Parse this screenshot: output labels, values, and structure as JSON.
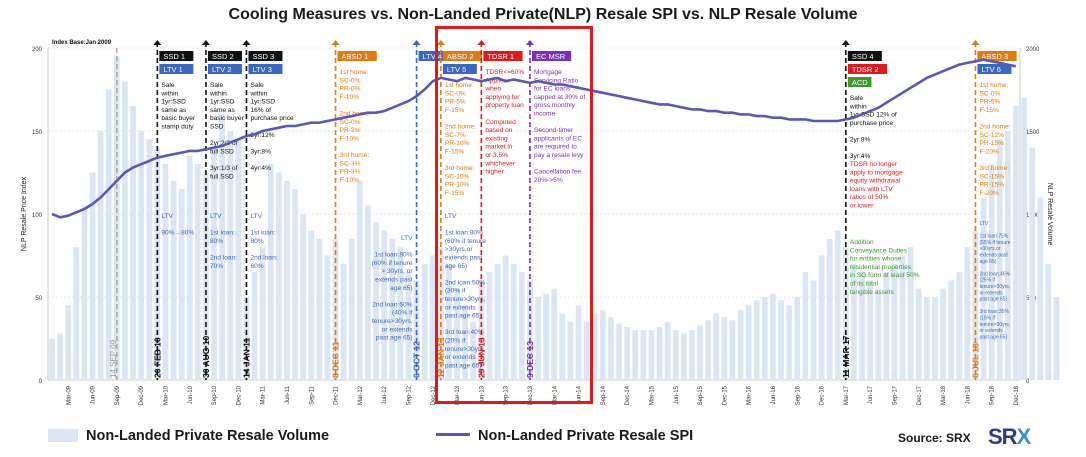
{
  "page": {
    "title": "Cooling Measures vs. Non-Landed Private(NLP) Resale SPI vs. NLP Resale Volume",
    "index_base": "Index Base:Jan 2009",
    "source": "Source: SRX",
    "logo_left": "SR",
    "logo_x": "X",
    "legend": {
      "volume": "Non-Landed Private Resale Volume",
      "spi": "Non-Landed Private Resale SPI"
    }
  },
  "colors": {
    "volume_bar": "#dbe6f4",
    "spi_line": "#5b57b8",
    "highlight": "#e0191d",
    "black": "#111111",
    "blue": "#3a66c4",
    "orange": "#e07b12",
    "red": "#e0191d",
    "purple": "#7b2fbf",
    "green": "#3a9a2c",
    "gray": "#9a9a9a"
  },
  "chart_data": {
    "type": "bar+line",
    "x_start": "Jan 2009",
    "x_end": "Dec 2018",
    "x_ticks": [
      "Mar-09",
      "Jun-09",
      "Sep-09",
      "Dec-09",
      "Mar-10",
      "Jun-10",
      "Sep-10",
      "Dec-10",
      "Mar-11",
      "Jun-11",
      "Sep-11",
      "Dec-11",
      "Mar-12",
      "Jun-12",
      "Sep-12",
      "Dec-12",
      "Mar-13",
      "Jun-13",
      "Sep-13",
      "Dec-13",
      "Mar-14",
      "Jun-14",
      "Sep-14",
      "Dec-14",
      "Mar-15",
      "Jun-15",
      "Sep-15",
      "Dec-15",
      "Mar-16",
      "Jun-16",
      "Sep-16",
      "Dec-16",
      "Mar-17",
      "Jun-17",
      "Sep-17",
      "Dec-17",
      "Mar-18",
      "Jun-18",
      "Sep-18",
      "Dec-18"
    ],
    "ylabel_left": "NLP Resale Price Index",
    "ylabel_right": "NLP Resale Volume",
    "ylim_left": [
      0,
      200
    ],
    "yticks_left": [
      0,
      50,
      100,
      150,
      200
    ],
    "ylim_right": [
      0,
      2000
    ],
    "yticks_right": [
      0,
      500,
      1000,
      1500,
      2000
    ],
    "series": [
      {
        "name": "Non-Landed Private Resale Volume",
        "kind": "bar",
        "axis": "right",
        "values": [
          250,
          280,
          450,
          800,
          1050,
          1250,
          1500,
          1750,
          1950,
          1800,
          1650,
          1500,
          1450,
          1400,
          1300,
          1200,
          1150,
          1350,
          1300,
          1250,
          1400,
          1600,
          1500,
          1450,
          500,
          650,
          800,
          1300,
          1250,
          1200,
          1150,
          1000,
          900,
          850,
          750,
          850,
          700,
          850,
          1200,
          1050,
          950,
          900,
          850,
          800,
          650,
          600,
          700,
          750,
          800,
          700,
          550,
          450,
          350,
          600,
          650,
          700,
          750,
          700,
          650,
          600,
          500,
          520,
          550,
          400,
          350,
          450,
          350,
          400,
          420,
          380,
          340,
          320,
          300,
          300,
          300,
          320,
          350,
          300,
          280,
          300,
          330,
          360,
          400,
          380,
          360,
          420,
          450,
          480,
          500,
          520,
          480,
          450,
          500,
          650,
          600,
          750,
          850,
          900,
          800,
          700,
          650,
          600,
          550,
          650,
          700,
          750,
          800,
          550,
          500,
          500,
          550,
          600,
          650,
          800,
          900,
          1100,
          1300,
          1450,
          1500,
          1650,
          1700,
          1400,
          1100,
          700,
          500
        ]
      },
      {
        "name": "Non-Landed Private Resale SPI",
        "kind": "line",
        "axis": "left",
        "values": [
          100,
          98,
          99,
          101,
          103,
          106,
          110,
          115,
          120,
          125,
          128,
          130,
          132,
          134,
          135,
          136,
          137,
          138,
          138,
          139,
          140,
          141,
          143,
          145,
          147,
          148,
          150,
          151,
          152,
          153,
          153,
          154,
          155,
          155,
          156,
          157,
          158,
          159,
          160,
          161,
          161,
          162,
          164,
          166,
          168,
          171,
          175,
          180,
          182,
          181,
          180,
          182,
          181,
          180,
          181,
          182,
          180,
          181,
          180,
          179,
          180,
          179,
          178,
          178,
          177,
          176,
          175,
          174,
          173,
          172,
          171,
          170,
          169,
          168,
          167,
          166,
          166,
          165,
          164,
          163,
          163,
          162,
          162,
          161,
          161,
          160,
          160,
          159,
          159,
          158,
          158,
          157,
          157,
          157,
          156,
          156,
          156,
          156,
          157,
          158,
          160,
          162,
          164,
          167,
          170,
          173,
          176,
          179,
          182,
          184,
          186,
          188,
          190,
          191,
          192,
          193,
          192,
          191,
          190,
          189
        ]
      }
    ]
  },
  "measures": [
    {
      "x": "Feb-10",
      "date_text": "20 FEB 10",
      "color": "black",
      "labels": [
        {
          "text": "SSD 1",
          "color": "black"
        },
        {
          "text": "LTV 1",
          "color": "blue"
        }
      ],
      "notes": [
        {
          "color": "black",
          "lines": [
            "Sale",
            "within",
            "1yr:SSD",
            "same as",
            "basic buyer",
            "stamp duty"
          ]
        },
        {
          "color": "blue",
          "lines": [
            "LTV",
            "",
            "90%→80%"
          ]
        }
      ]
    },
    {
      "x": "Aug-10",
      "date_text": "30 AUG 10",
      "color": "black",
      "labels": [
        {
          "text": "SSD 2",
          "color": "black"
        },
        {
          "text": "LTV 2",
          "color": "blue"
        }
      ],
      "notes": [
        {
          "color": "black",
          "lines": [
            "Sale",
            "within",
            "1yr:SSD",
            "same as",
            "basic buyer",
            "SSD",
            "",
            "2yr:2/3 of",
            "full SSD",
            "",
            "3yr:1/3 of",
            "full SSD"
          ]
        },
        {
          "color": "blue",
          "lines": [
            "LTV",
            "",
            "1st loan:",
            "80%",
            "",
            "2nd loan:",
            "70%"
          ]
        }
      ]
    },
    {
      "x": "Jan-11",
      "date_text": "14 JAN 11",
      "color": "black",
      "labels": [
        {
          "text": "SSD 3",
          "color": "black"
        },
        {
          "text": "LTV 3",
          "color": "blue"
        }
      ],
      "notes": [
        {
          "color": "black",
          "lines": [
            "Sale",
            "within",
            "1yr:SSD",
            "16% of",
            "purchase price",
            "",
            "2yr:12%",
            "",
            "3yr:8%",
            "",
            "4yr:4%"
          ]
        },
        {
          "color": "blue",
          "lines": [
            "LTV",
            "",
            "1st loan:",
            "80%",
            "",
            "2nd loan:",
            "60%"
          ]
        }
      ]
    },
    {
      "x": "Dec-11",
      "date_text": "8 DEC 11",
      "color": "orange",
      "labels": [
        {
          "text": "ABSD 1",
          "color": "orange"
        }
      ],
      "notes": [
        {
          "color": "orange",
          "lines": [
            "1st home:",
            "SC-0%",
            "PR-0%",
            "F-10%",
            "",
            "2nd home:",
            "SC-0%",
            "PR-3%",
            "F-10%",
            "",
            "3rd home:",
            "SC-3%",
            "PR-3%",
            "F-10%"
          ]
        }
      ]
    },
    {
      "x": "Oct-12",
      "date_text": "6 OCT 12",
      "color": "blue",
      "labels": [
        {
          "text": "LTV 4",
          "color": "blue"
        }
      ],
      "notes": [
        {
          "color": "blue",
          "lines": [
            "LTV",
            "",
            "1st loan:80%",
            "(60% if tenure",
            "> 30yrs, or",
            "extends past",
            "age 65)",
            "",
            "2nd loan:60%",
            "(40% if",
            "tenure>30yrs,",
            "or extends",
            "past age 65)"
          ]
        }
      ]
    },
    {
      "x": "Jan-13",
      "date_text": "12 JAN 13",
      "color": "orange",
      "labels": [
        {
          "text": "ABSD 2",
          "color": "orange"
        },
        {
          "text": "LTV 5",
          "color": "blue"
        }
      ],
      "notes": [
        {
          "color": "orange",
          "lines": [
            "1st home:",
            "SC-0%",
            "PR-5%",
            "F-15%",
            "",
            "2nd home:",
            "SC-7%",
            "PR-10%",
            "F-15%",
            "",
            "3rd home:",
            "SC-10%",
            "PR-10%",
            "F-15%"
          ]
        },
        {
          "color": "blue",
          "lines": [
            "LTV",
            "",
            "1st loan:80%",
            "(60% if tenure",
            ">30yrs,or",
            "extends past",
            "age 65)",
            "",
            "2nd loan:50%",
            "(30% if",
            "tenure>30yrs,",
            "or extends",
            "past age 65)",
            "",
            "3rd loan:40%",
            "(20% if",
            "tenure>30yrs,",
            "or extends",
            "past age 65)"
          ]
        }
      ]
    },
    {
      "x": "Jun-13",
      "date_text": "29 JUN 13",
      "color": "red",
      "labels": [
        {
          "text": "TDSR 1",
          "color": "red"
        }
      ],
      "notes": [
        {
          "color": "red",
          "lines": [
            "TDSR<=60%",
            "Applies",
            "when",
            "applying for",
            "property loan",
            "",
            "Computed",
            "based on",
            "existing",
            "market i/r",
            "or 3.5%",
            "whichever",
            "higher"
          ]
        }
      ]
    },
    {
      "x": "Dec-13",
      "date_text": "9 DEC 13",
      "color": "purple",
      "labels": [
        {
          "text": "EC MSR",
          "color": "purple"
        }
      ],
      "notes": [
        {
          "color": "purple",
          "lines": [
            "Mortgage",
            "Servicing Ratio",
            "for EC loans",
            "capped at 30% of",
            "gross monthly",
            "income",
            "",
            "Second-timer",
            "applicants of EC",
            "are required to",
            "pay a resale levy",
            "",
            "Cancellation fee",
            "20%->5%"
          ]
        }
      ]
    },
    {
      "x": "Mar-17",
      "date_text": "11 MAR 17",
      "color": "black",
      "labels": [
        {
          "text": "SSD 4",
          "color": "black"
        },
        {
          "text": "TDSR 2",
          "color": "red"
        },
        {
          "text": "ACD",
          "color": "green"
        }
      ],
      "notes": [
        {
          "color": "black",
          "lines": [
            "Sale",
            "within",
            "1yr:SSD 12% of",
            "purchase price",
            "",
            "2yr:8%",
            "",
            "3yr:4%"
          ]
        },
        {
          "color": "red",
          "lines": [
            "TDSR no longer",
            "apply to mortgage",
            "equity withdrawal",
            "loans with LTV",
            "ratios of 50%",
            "or lower"
          ]
        },
        {
          "color": "green",
          "lines": [
            "Addition",
            "Conveyance Duties",
            "for entities whose",
            "residential properties",
            "in SG form at least 50%",
            "of its total",
            "tangible assets"
          ]
        }
      ]
    },
    {
      "x": "Jul-18",
      "date_text": "6 JUL 18",
      "color": "orange",
      "labels": [
        {
          "text": "ABSD 3",
          "color": "orange"
        },
        {
          "text": "LTV 6",
          "color": "blue"
        }
      ],
      "notes": [
        {
          "color": "orange",
          "lines": [
            "1st home:",
            "SC-0%",
            "PR-5%",
            "F-15%",
            "",
            "2nd home:",
            "SC-12%",
            "PR-15%",
            "F-20%",
            "",
            "3rd home:",
            "SC-15%",
            "PR-15%",
            "F-20%"
          ]
        },
        {
          "color": "blue",
          "lines": [
            "LTV",
            "",
            "1st loan:75%",
            "(55% if tenure",
            ">30yrs,or",
            "extends past",
            "age 65)",
            "",
            "2nd loan:45%",
            "(25% if",
            "tenure>30yrs,",
            "or extends",
            "past age 65)",
            "",
            "3rd loan:35%",
            "(15% if",
            "tenure>30yrs,",
            "or extends",
            "past age 65)"
          ]
        }
      ]
    }
  ],
  "extra_marker": {
    "x": "Sep-09",
    "date_text": "14 SEP 09",
    "color": "gray"
  }
}
